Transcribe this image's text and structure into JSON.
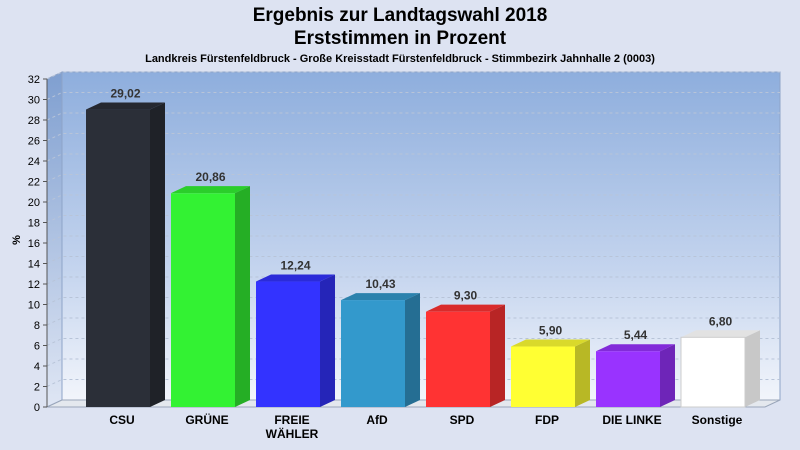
{
  "chart_data": {
    "type": "bar",
    "title": [
      "Ergebnis zur Landtagswahl 2018",
      "Erststimmen in Prozent"
    ],
    "subtitle": "Landkreis Fürstenfeldbruck - Große Kreisstadt Fürstenfeldbruck - Stimmbezirk Jahnhalle 2 (0003)",
    "ylabel": "%",
    "ylim": [
      0,
      32
    ],
    "ytick_step": 2,
    "grid": true,
    "categories": [
      "CSU",
      "GRÜNE",
      "FREIE WÄHLER",
      "AfD",
      "SPD",
      "FDP",
      "DIE LINKE",
      "Sonstige"
    ],
    "category_label_lines": [
      [
        "CSU"
      ],
      [
        "GRÜNE"
      ],
      [
        "FREIE",
        "WÄHLER"
      ],
      [
        "AfD"
      ],
      [
        "SPD"
      ],
      [
        "FDP"
      ],
      [
        "DIE LINKE"
      ],
      [
        "Sonstige"
      ]
    ],
    "values": [
      29.02,
      20.86,
      12.24,
      10.43,
      9.3,
      5.9,
      5.44,
      6.8
    ],
    "value_labels": [
      "29,02",
      "20,86",
      "12,24",
      "10,43",
      "9,30",
      "5,90",
      "5,44",
      "6,80"
    ],
    "colors": [
      "#2b2f38",
      "#33f233",
      "#3333ff",
      "#3399cc",
      "#ff3333",
      "#ffff33",
      "#9933ff",
      "#ffffff"
    ]
  }
}
